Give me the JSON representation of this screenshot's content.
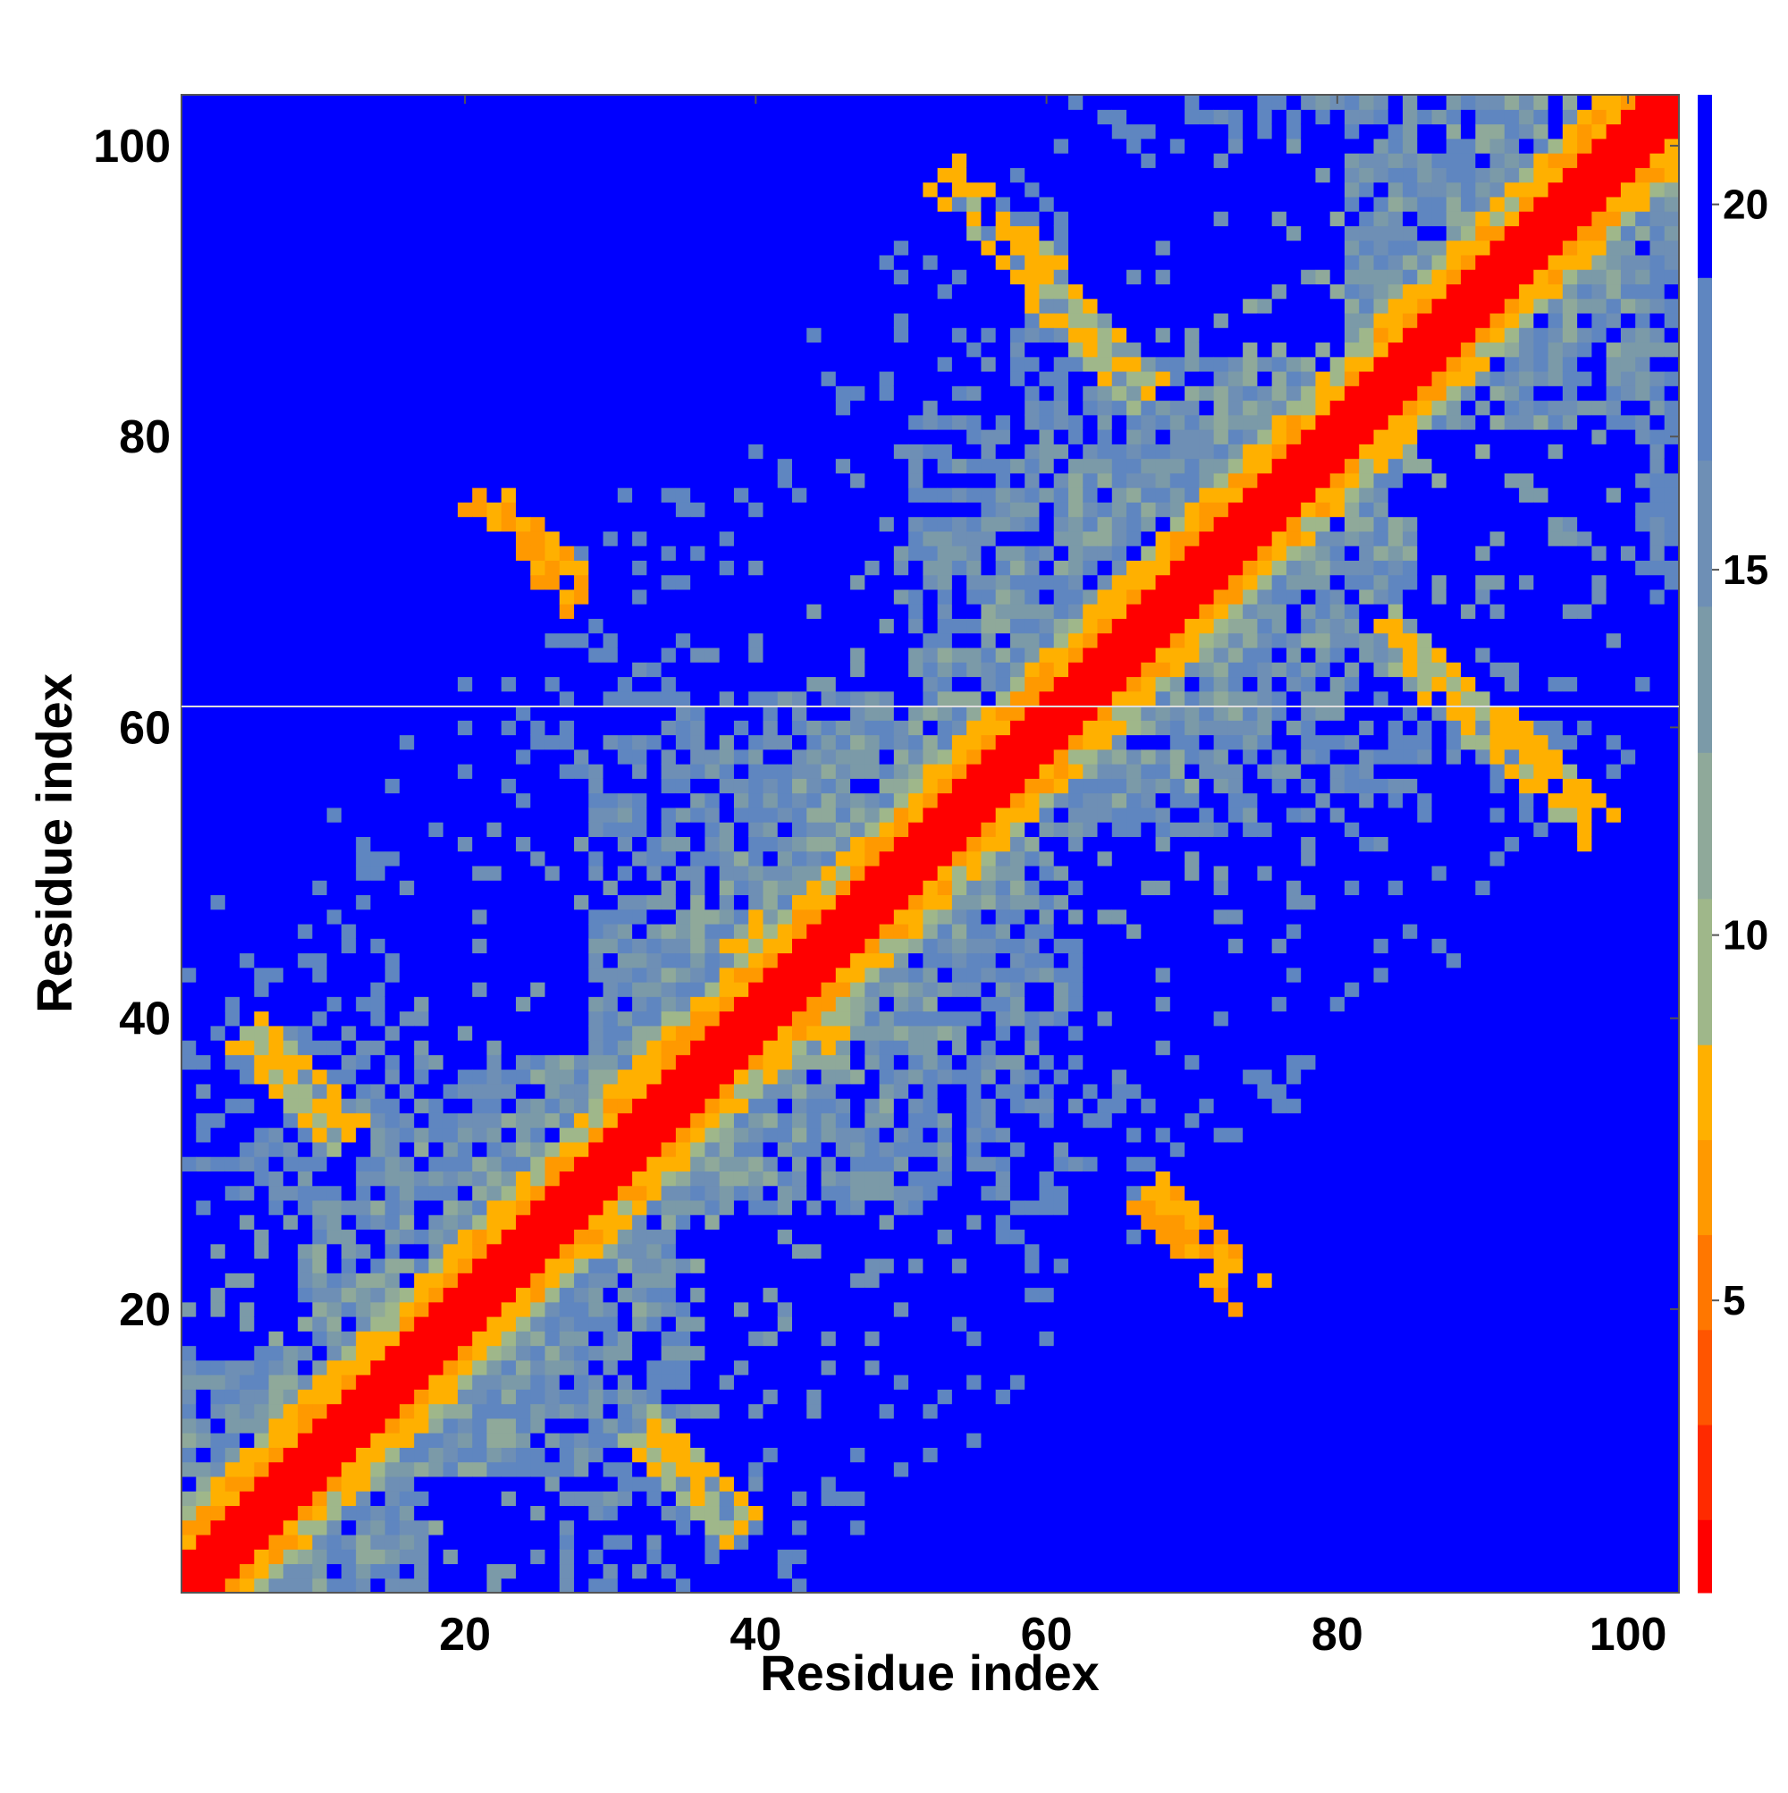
{
  "chart_data": {
    "type": "heatmap",
    "title": "",
    "xlabel": "Residue index",
    "ylabel": "Residue index",
    "n_residues": 103,
    "xlim": [
      1,
      103
    ],
    "ylim": [
      1,
      103
    ],
    "x_ticks": [
      20,
      40,
      60,
      80,
      100
    ],
    "y_ticks": [
      20,
      40,
      60,
      80,
      100
    ],
    "colorbar": {
      "range": [
        1,
        21.5
      ],
      "ticks": [
        5,
        10,
        15,
        20
      ],
      "levels": [
        {
          "max": 2.0,
          "color": "#ff0000"
        },
        {
          "max": 3.3,
          "color": "#ff2a00"
        },
        {
          "max": 4.6,
          "color": "#ff5500"
        },
        {
          "max": 5.9,
          "color": "#ff7700"
        },
        {
          "max": 7.2,
          "color": "#ff9900"
        },
        {
          "max": 8.5,
          "color": "#ffb000"
        },
        {
          "max": 10.5,
          "color": "#9fb78a"
        },
        {
          "max": 12.5,
          "color": "#8fa99a"
        },
        {
          "max": 14.5,
          "color": "#7b9aa8"
        },
        {
          "max": 16.5,
          "color": "#6e8fb5"
        },
        {
          "max": 19.0,
          "color": "#5f86c0"
        },
        {
          "max": 100.0,
          "color": "#0000ff"
        }
      ]
    },
    "structure": {
      "diagonal_band_halfwidth": 2,
      "near_diagonal_width": 5,
      "far_value": 22,
      "contact_patches": [
        {
          "x": 24.5,
          "y": 72.5,
          "value": 6.2
        },
        {
          "x": 70.5,
          "y": 24.5,
          "value": 6.2
        },
        {
          "x": 35.5,
          "y": 8.5,
          "value": 7.4
        },
        {
          "x": 8.5,
          "y": 35.5,
          "value": 7.4
        },
        {
          "x": 56.5,
          "y": 94.5,
          "value": 7.2
        },
        {
          "x": 94.5,
          "y": 56.5,
          "value": 7.2
        },
        {
          "x": 42.5,
          "y": 42.5,
          "value": 6.8
        },
        {
          "x": 63.5,
          "y": 86.5,
          "value": 7.6
        },
        {
          "x": 86.5,
          "y": 63.5,
          "value": 7.6
        }
      ],
      "blue_regions": [
        {
          "x": [
            16,
            28
          ],
          "y": [
            38,
            56
          ]
        },
        {
          "x": [
            36,
            50
          ],
          "y": [
            63,
            100
          ]
        },
        {
          "x": [
            63,
            90
          ],
          "y": [
            36,
            52
          ]
        },
        {
          "x": [
            36,
            56
          ],
          "y": [
            10,
            26
          ]
        },
        {
          "x": [
            1,
            8
          ],
          "y": [
            18,
            26
          ]
        },
        {
          "x": [
            18,
            26
          ],
          "y": [
            1,
            8
          ]
        },
        {
          "x": [
            1,
            14
          ],
          "y": [
            80,
            100
          ]
        },
        {
          "x": [
            80,
            100
          ],
          "y": [
            1,
            14
          ]
        },
        {
          "x": [
            62,
            80
          ],
          "y": [
            86,
            100
          ]
        },
        {
          "x": [
            86,
            100
          ],
          "y": [
            62,
            80
          ]
        }
      ]
    }
  }
}
